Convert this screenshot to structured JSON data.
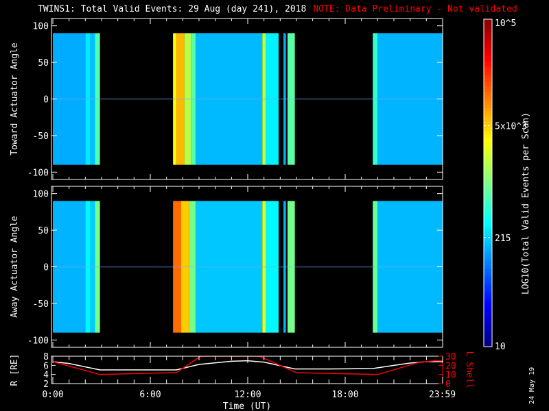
{
  "title": {
    "main": "TWINS1: Total Valid Events: 29 Aug (day 241), 2018",
    "note": "NOTE: Data Preliminary - Not validated"
  },
  "stamp": "24 May 19",
  "colors": {
    "note": "#ff0000",
    "r_line": "#ffffff",
    "l_line": "#ff0000",
    "background": "#000000"
  },
  "chart_data": [
    {
      "type": "heatmap",
      "name": "toward",
      "ylabel": "Toward Actuator Angle",
      "xlim": [
        0,
        24
      ],
      "ylim": [
        -110,
        110
      ],
      "yticks": [
        100,
        50,
        0,
        -50,
        -100
      ],
      "data_yrange": [
        -90,
        90
      ],
      "segments": [
        [
          0,
          2.0,
          150
        ],
        [
          2.0,
          2.3,
          260
        ],
        [
          2.3,
          2.6,
          180
        ],
        [
          2.6,
          2.9,
          650
        ],
        [
          7.4,
          7.6,
          3000
        ],
        [
          7.6,
          8.1,
          6000
        ],
        [
          8.1,
          8.5,
          1600
        ],
        [
          8.5,
          8.8,
          700
        ],
        [
          8.8,
          12.9,
          170
        ],
        [
          12.9,
          13.1,
          1800
        ],
        [
          13.1,
          13.9,
          280
        ],
        [
          14.2,
          14.35,
          150
        ],
        [
          14.45,
          14.9,
          700
        ],
        [
          19.7,
          20.0,
          500
        ],
        [
          20.0,
          24,
          160
        ]
      ]
    },
    {
      "type": "heatmap",
      "name": "away",
      "ylabel": "Away Actuator Angle",
      "xlim": [
        0,
        24
      ],
      "ylim": [
        -110,
        110
      ],
      "yticks": [
        100,
        50,
        0,
        -50,
        -100
      ],
      "data_yrange": [
        -90,
        90
      ],
      "segments": [
        [
          0,
          2.0,
          160
        ],
        [
          2.0,
          2.3,
          300
        ],
        [
          2.3,
          2.6,
          200
        ],
        [
          2.6,
          2.9,
          900
        ],
        [
          7.4,
          7.9,
          12000
        ],
        [
          7.9,
          8.4,
          5000
        ],
        [
          8.4,
          8.8,
          900
        ],
        [
          8.8,
          12.9,
          190
        ],
        [
          12.9,
          13.1,
          2500
        ],
        [
          13.1,
          13.9,
          300
        ],
        [
          14.2,
          14.35,
          160
        ],
        [
          14.45,
          14.9,
          900
        ],
        [
          19.7,
          20.0,
          800
        ],
        [
          20.0,
          24,
          170
        ]
      ]
    },
    {
      "type": "line",
      "name": "orbit",
      "xlabel": "Time (UT)",
      "xticks": [
        "0:00",
        "6:00",
        "12:00",
        "18:00",
        "23:59"
      ],
      "ylabel_left": "R [RE]",
      "ylim_left": [
        2,
        8
      ],
      "yticks_left": [
        "8",
        "6",
        "4",
        "2"
      ],
      "ylabel_right": "L Shell",
      "ylim_right": [
        0,
        30
      ],
      "yticks_right": [
        "30",
        "20",
        "10",
        "0"
      ],
      "series": [
        {
          "name": "R",
          "axis": "left",
          "x": [
            0,
            1,
            2.9,
            7.6,
            9,
            11,
            12,
            13,
            14.9,
            17,
            19.7,
            21,
            22,
            23,
            24
          ],
          "y": [
            6.8,
            6.4,
            5.0,
            5.0,
            6.2,
            6.9,
            7.0,
            6.7,
            5.2,
            5.2,
            5.3,
            6.0,
            6.5,
            6.8,
            6.8
          ]
        },
        {
          "name": "L Shell",
          "axis": "right",
          "x": [
            0,
            2.9,
            4,
            7.6,
            9.1,
            12.7,
            15,
            17.5,
            20,
            22.5,
            23.5,
            24
          ],
          "y": [
            24,
            10,
            10.5,
            12,
            30,
            30,
            12,
            11,
            10,
            23,
            25,
            25
          ]
        }
      ]
    }
  ],
  "colorbar": {
    "label": "LOG10(Total Valid Events per Scan)",
    "min": 10,
    "max": 100000,
    "ticks": [
      "10^5",
      "5x10^3",
      "215",
      "10"
    ],
    "tick_values": [
      100000,
      5000,
      215,
      10
    ]
  }
}
